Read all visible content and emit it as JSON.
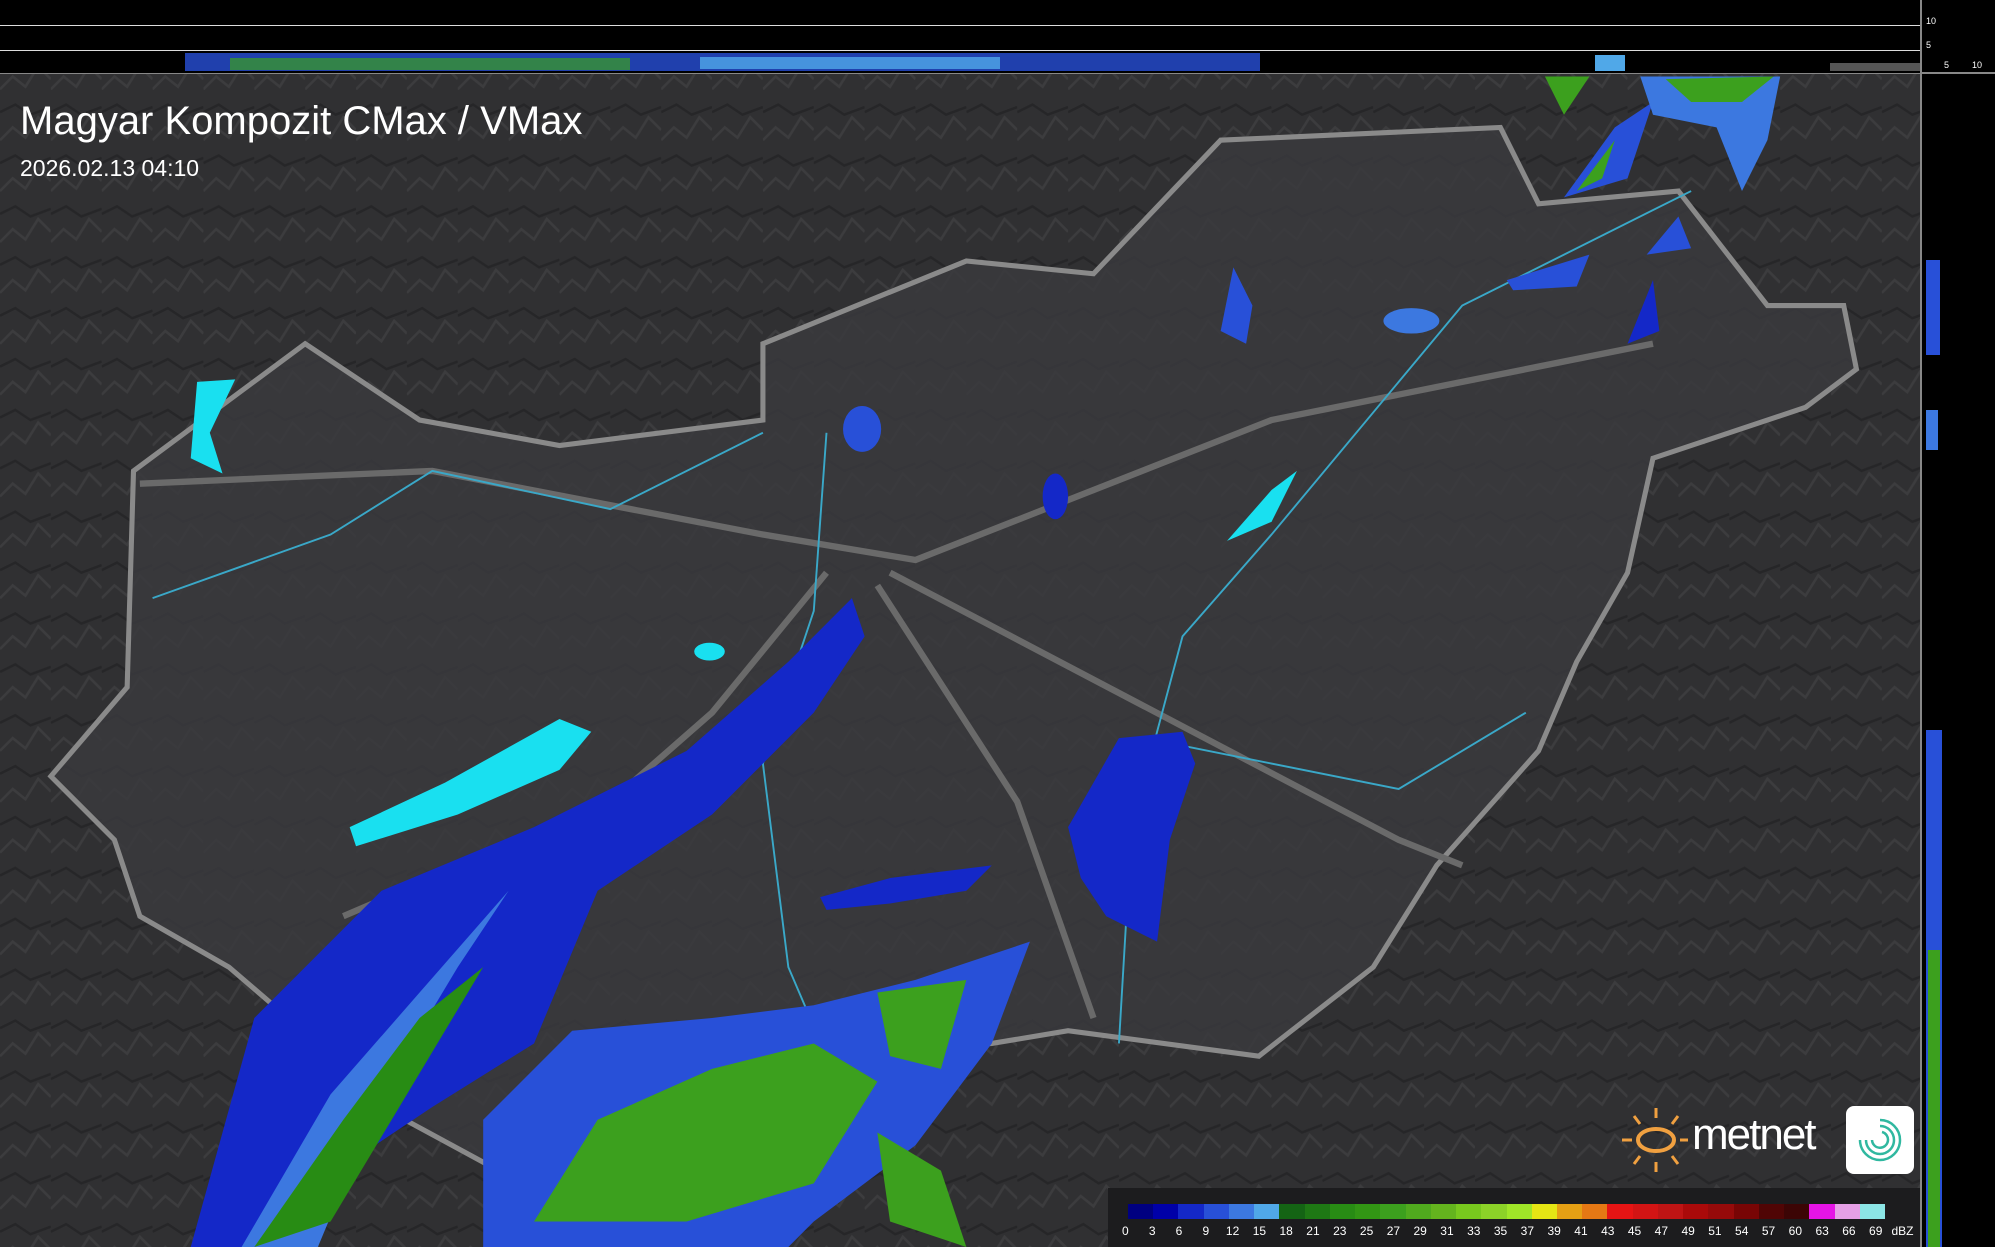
{
  "title": "Magyar Kompozit CMax / VMax",
  "timestamp": "2026.02.13 04:10",
  "brand": {
    "name": "metnet",
    "sun_color": "#f0a040",
    "icon_color": "#30b8a0"
  },
  "side_axes": {
    "top_ticks": [
      "10",
      "5"
    ],
    "right_ticks": [
      "5",
      "10"
    ]
  },
  "legend": {
    "unit": "dBZ",
    "labels": [
      "0",
      "3",
      "6",
      "9",
      "12",
      "15",
      "18",
      "21",
      "23",
      "25",
      "27",
      "29",
      "31",
      "33",
      "35",
      "37",
      "39",
      "41",
      "43",
      "45",
      "47",
      "49",
      "51",
      "54",
      "57",
      "60",
      "63",
      "66",
      "69"
    ],
    "colors": [
      "#000080",
      "#0000a8",
      "#1428c8",
      "#2850d8",
      "#3c78e0",
      "#50a8e8",
      "#146414",
      "#1e7814",
      "#288c14",
      "#329614",
      "#3ca01e",
      "#50aa1e",
      "#64b41e",
      "#78c81e",
      "#8cd228",
      "#a0e628",
      "#e6e614",
      "#e6a014",
      "#e67814",
      "#e61414",
      "#d21414",
      "#be1414",
      "#aa0a0a",
      "#960a0a",
      "#780505",
      "#500505",
      "#3c0505",
      "#e614e6",
      "#e6a0e6",
      "#8ce6e6"
    ]
  },
  "colors": {
    "lake": "#19e0f0",
    "border": "#8a8a8a",
    "river": "#3aa8c8",
    "background": "#2e2e30"
  }
}
